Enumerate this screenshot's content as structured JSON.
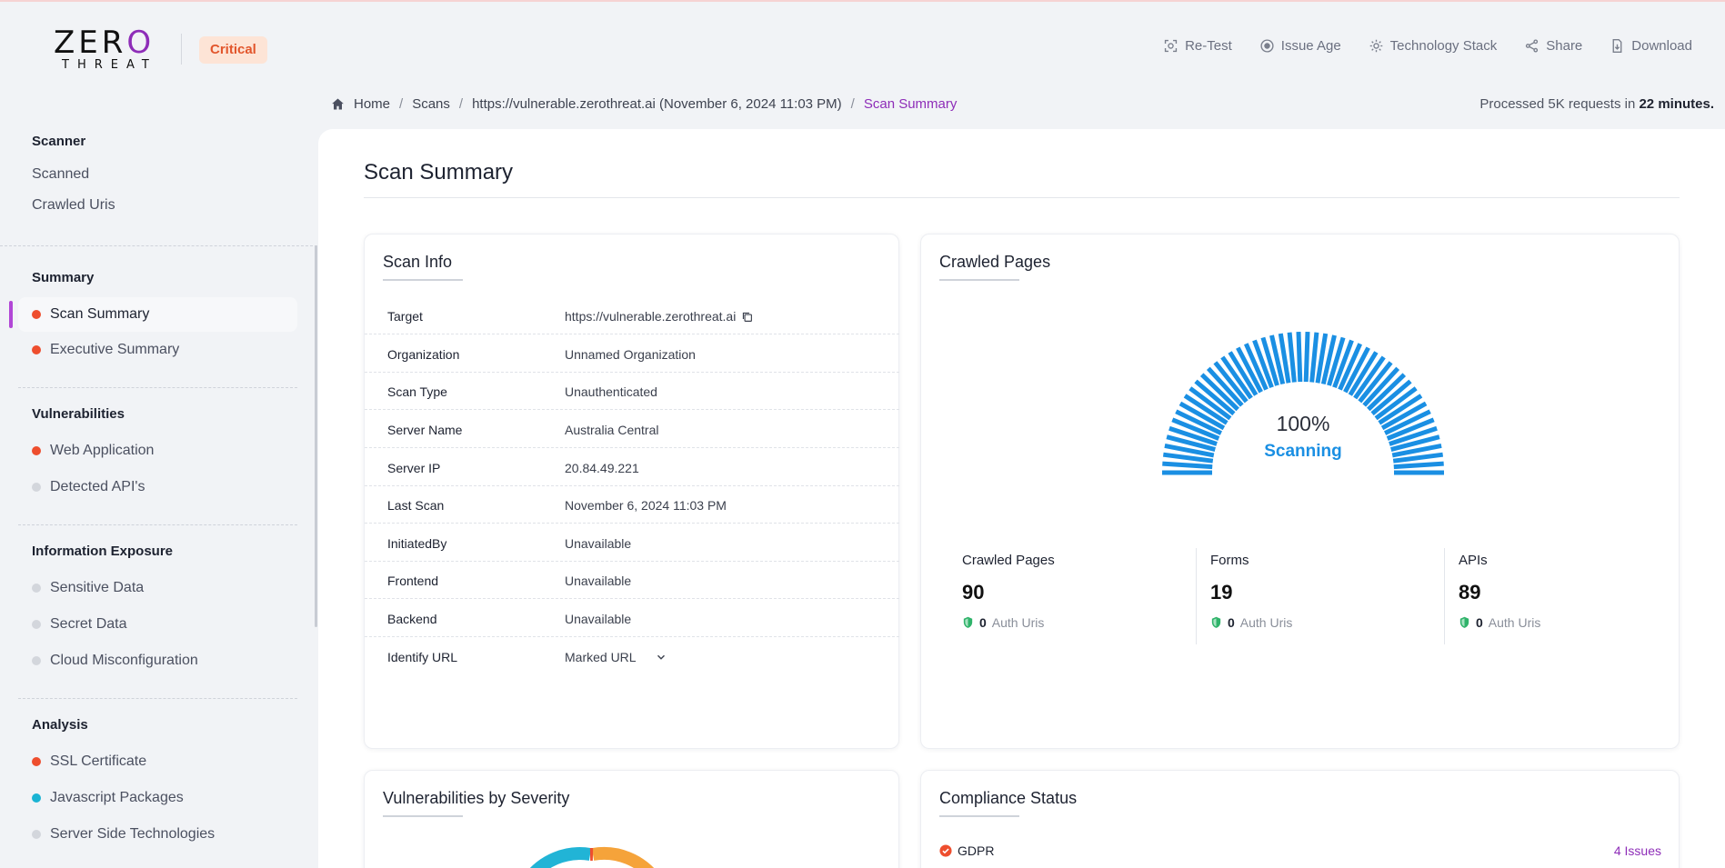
{
  "header": {
    "logo_top_a": "ZER",
    "logo_top_b": "O",
    "logo_bottom": "THREAT",
    "badge": "Critical",
    "actions": [
      {
        "label": "Re-Test",
        "icon": "retest-icon"
      },
      {
        "label": "Issue Age",
        "icon": "issue-age-icon"
      },
      {
        "label": "Technology Stack",
        "icon": "gear-icon"
      },
      {
        "label": "Share",
        "icon": "share-icon"
      },
      {
        "label": "Download",
        "icon": "download-icon"
      }
    ]
  },
  "breadcrumb": {
    "items": [
      "Home",
      "Scans",
      "https://vulnerable.zerothreat.ai (November 6, 2024 11:03 PM)",
      "Scan Summary"
    ],
    "separator": "/"
  },
  "processed": {
    "prefix": "Processed 5K requests in",
    "duration": "22 minutes."
  },
  "sidebar": {
    "scanner": {
      "title": "Scanner",
      "items": [
        "Scanned",
        "Crawled Uris"
      ]
    },
    "summary": {
      "title": "Summary",
      "items": [
        {
          "label": "Scan Summary",
          "dot": "#ee4e2e"
        },
        {
          "label": "Executive Summary",
          "dot": "#ee4e2e"
        }
      ]
    },
    "vulnerabilities": {
      "title": "Vulnerabilities",
      "items": [
        {
          "label": "Web Application",
          "dot": "#ee4e2e"
        },
        {
          "label": "Detected API's",
          "dot": "#d3d6dc"
        }
      ]
    },
    "exposure": {
      "title": "Information Exposure",
      "items": [
        {
          "label": "Sensitive Data",
          "dot": "#d3d6dc"
        },
        {
          "label": "Secret Data",
          "dot": "#d3d6dc"
        },
        {
          "label": "Cloud Misconfiguration",
          "dot": "#d3d6dc"
        }
      ]
    },
    "analysis": {
      "title": "Analysis",
      "items": [
        {
          "label": "SSL Certificate",
          "dot": "#ee4e2e"
        },
        {
          "label": "Javascript Packages",
          "dot": "#1ab3d3"
        },
        {
          "label": "Server Side Technologies",
          "dot": "#d3d6dc"
        }
      ]
    }
  },
  "main": {
    "title": "Scan Summary",
    "scan_info": {
      "title": "Scan Info",
      "rows": [
        {
          "k": "Target",
          "v": "https://vulnerable.zerothreat.ai"
        },
        {
          "k": "Organization",
          "v": "Unnamed Organization"
        },
        {
          "k": "Scan Type",
          "v": "Unauthenticated"
        },
        {
          "k": "Server Name",
          "v": "Australia Central"
        },
        {
          "k": "Server IP",
          "v": "20.84.49.221"
        },
        {
          "k": "Last Scan",
          "v": "November 6, 2024 11:03 PM"
        },
        {
          "k": "InitiatedBy",
          "v": "Unavailable"
        },
        {
          "k": "Frontend",
          "v": "Unavailable"
        },
        {
          "k": "Backend",
          "v": "Unavailable"
        },
        {
          "k": "Identify URL",
          "v": "Marked URL"
        }
      ]
    },
    "crawled": {
      "title": "Crawled Pages",
      "progress_text": "100%",
      "progress_value": 1.0,
      "status": "Scanning",
      "accent": "#1a8fe3",
      "stats": [
        {
          "label": "Crawled Pages",
          "value": "90",
          "auth_count": "0",
          "auth_label": "Auth Uris"
        },
        {
          "label": "Forms",
          "value": "19",
          "auth_count": "0",
          "auth_label": "Auth Uris"
        },
        {
          "label": "APIs",
          "value": "89",
          "auth_count": "0",
          "auth_label": "Auth Uris"
        }
      ]
    },
    "vuln_severity": {
      "title": "Vulnerabilities by Severity"
    },
    "compliance": {
      "title": "Compliance Status",
      "rows": [
        {
          "name": "GDPR",
          "issues": "4 Issues"
        }
      ]
    }
  }
}
